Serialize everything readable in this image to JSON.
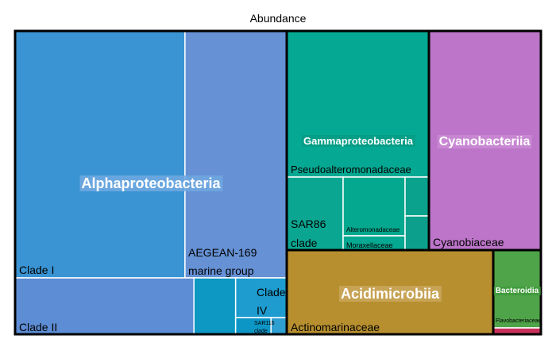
{
  "chart_data": {
    "type": "treemap",
    "title": "Abundance",
    "groups": [
      {
        "name": "Alphaproteobacteria",
        "color": "#3a94d3",
        "children": [
          {
            "name": "Clade I",
            "value": 36.4,
            "color": "#3a94d3"
          },
          {
            "name": "AEGEAN-169 marine group",
            "value": 21.8,
            "color": "#6691d4"
          },
          {
            "name": "Clade II",
            "value": 13.3,
            "color": "#5d8dd4"
          },
          {
            "name": "",
            "value": 3.1,
            "color": "#0c98c2"
          },
          {
            "name": "Clade IV",
            "value": 2.5,
            "color": "#1e9ccf"
          },
          {
            "name": "SAR116 clade",
            "value": 0.9,
            "color": "#0c96c6"
          },
          {
            "name": "",
            "value": 0.4,
            "color": "#2f9fd0"
          }
        ]
      },
      {
        "name": "Gammaproteobacteria",
        "color": "#05a892",
        "children": [
          {
            "name": "Pseudoalteromonadaceae",
            "value": 10.7,
            "color": "#05a892"
          },
          {
            "name": "SAR86 clade",
            "value": 4.1,
            "color": "#0ba691"
          },
          {
            "name": "Alteromonadaceae",
            "value": 3.0,
            "color": "#04a88e"
          },
          {
            "name": "Moraxellaceae",
            "value": 1.0,
            "color": "#05a891"
          },
          {
            "name": "",
            "value": 1.5,
            "color": "#0aa18d"
          },
          {
            "name": "",
            "value": 1.5,
            "color": "#0ca08c"
          }
        ]
      },
      {
        "name": "Cyanobacteriia",
        "color": "#bc75c9",
        "children": [
          {
            "name": "Cyanobiaceae",
            "value": 18.5,
            "color": "#bc75c9"
          }
        ]
      },
      {
        "name": "Acidimicrobiia",
        "color": "#b78f2f",
        "children": [
          {
            "name": "Actinomarinaceae",
            "value": 13.6,
            "color": "#b78f2f"
          }
        ]
      },
      {
        "name": "Bacteroidia",
        "color": "#4fa44a",
        "children": [
          {
            "name": "Flavobacteriaceae",
            "value": 2.6,
            "color": "#4fa44a"
          },
          {
            "name": "",
            "value": 0.3,
            "color": "#c7305b"
          }
        ]
      }
    ]
  }
}
